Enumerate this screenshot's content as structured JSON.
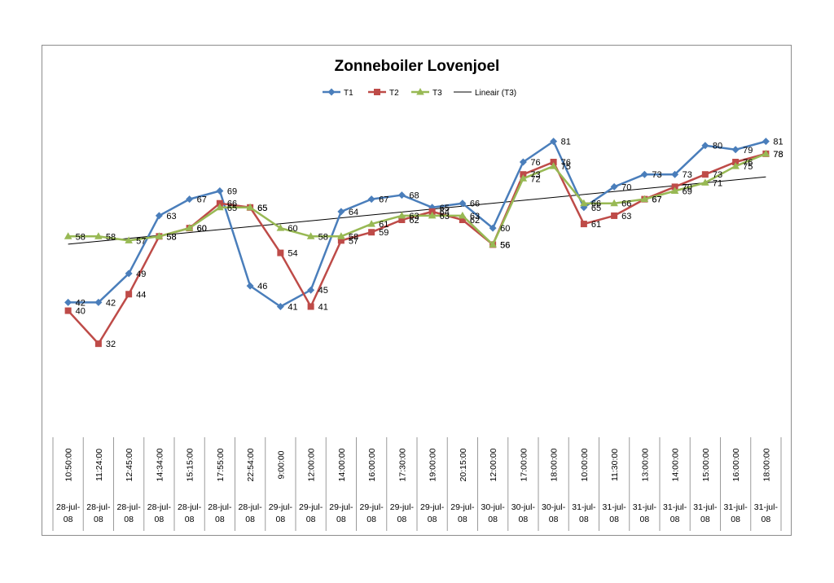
{
  "chart_data": {
    "type": "line",
    "title": "Zonneboiler Lovenjoel",
    "legend_position": "top",
    "grid": false,
    "ylim": [
      20,
      90
    ],
    "x": [
      {
        "time": "10:50:00",
        "date": "28-jul-08"
      },
      {
        "time": "11:24:00",
        "date": "28-jul-08"
      },
      {
        "time": "12:45:00",
        "date": "28-jul-08"
      },
      {
        "time": "14:34:00",
        "date": "28-jul-08"
      },
      {
        "time": "15:15:00",
        "date": "28-jul-08"
      },
      {
        "time": "17:55:00",
        "date": "28-jul-08"
      },
      {
        "time": "22:54:00",
        "date": "28-jul-08"
      },
      {
        "time": "9:00:00",
        "date": "29-jul-08"
      },
      {
        "time": "12:00:00",
        "date": "29-jul-08"
      },
      {
        "time": "14:00:00",
        "date": "29-jul-08"
      },
      {
        "time": "16:00:00",
        "date": "29-jul-08"
      },
      {
        "time": "17:30:00",
        "date": "29-jul-08"
      },
      {
        "time": "19:00:00",
        "date": "29-jul-08"
      },
      {
        "time": "20:15:00",
        "date": "29-jul-08"
      },
      {
        "time": "12:00:00",
        "date": "30-jul-08"
      },
      {
        "time": "17:00:00",
        "date": "30-jul-08"
      },
      {
        "time": "18:00:00",
        "date": "30-jul-08"
      },
      {
        "time": "10:00:00",
        "date": "31-jul-08"
      },
      {
        "time": "11:30:00",
        "date": "31-jul-08"
      },
      {
        "time": "13:00:00",
        "date": "31-jul-08"
      },
      {
        "time": "14:00:00",
        "date": "31-jul-08"
      },
      {
        "time": "15:00:00",
        "date": "31-jul-08"
      },
      {
        "time": "16:00:00",
        "date": "31-jul-08"
      },
      {
        "time": "18:00:00",
        "date": "31-jul-08"
      }
    ],
    "series": [
      {
        "name": "T1",
        "color": "#4a7ebb",
        "marker": "diamond",
        "values": [
          42,
          42,
          49,
          63,
          67,
          69,
          46,
          41,
          45,
          64,
          67,
          68,
          65,
          66,
          60,
          76,
          81,
          65,
          70,
          73,
          73,
          80,
          79,
          81
        ]
      },
      {
        "name": "T2",
        "color": "#be4b48",
        "marker": "square",
        "values": [
          40,
          32,
          44,
          58,
          60,
          66,
          65,
          54,
          41,
          57,
          59,
          62,
          64,
          62,
          56,
          73,
          76,
          61,
          63,
          67,
          70,
          73,
          76,
          78
        ]
      },
      {
        "name": "T3",
        "color": "#98b954",
        "marker": "triangle",
        "values": [
          58,
          58,
          57,
          58,
          60,
          65,
          65,
          60,
          58,
          58,
          61,
          63,
          63,
          63,
          56,
          72,
          75,
          66,
          66,
          67,
          69,
          71,
          75,
          78
        ]
      }
    ],
    "trendline": {
      "name": "Lineair (T3)",
      "color": "#000000",
      "of_series": "T3",
      "type": "linear"
    }
  }
}
